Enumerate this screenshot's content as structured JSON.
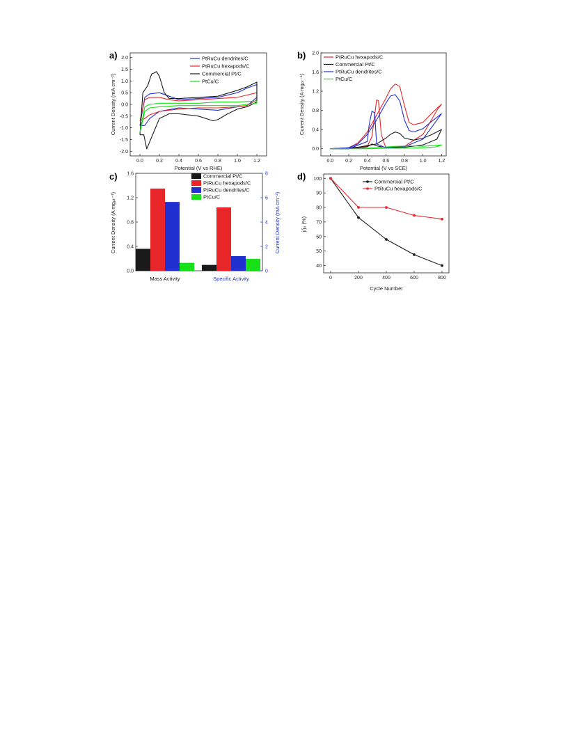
{
  "colors": {
    "black": "#1a1a1a",
    "red": "#e8262a",
    "blue": "#2030d0",
    "green": "#18e018",
    "gray": "#555555"
  },
  "chart_data": [
    {
      "panel": "a)",
      "type": "line",
      "xlabel": "Potential (V vs RHE)",
      "ylabel": "Current Density (mA cm⁻²)",
      "xlim": [
        -0.1,
        1.3
      ],
      "ylim": [
        -2.2,
        2.2
      ],
      "xticks": [
        "0.0",
        "0.2",
        "0.4",
        "0.6",
        "0.8",
        "1.0",
        "1.2"
      ],
      "yticks": [
        "-2.0",
        "-1.5",
        "-1.0",
        "-0.5",
        "0.0",
        "0.5",
        "1.0",
        "1.5",
        "2.0"
      ],
      "legend_position": "top-right",
      "series": [
        {
          "name": "PtRuCu dendrites/C",
          "color": "blue",
          "x": [
            0.0,
            0.05,
            0.1,
            0.2,
            0.3,
            0.4,
            0.6,
            0.8,
            1.0,
            1.1,
            1.2,
            1.2,
            1.1,
            1.0,
            0.8,
            0.6,
            0.4,
            0.2,
            0.1,
            0.05,
            0.0
          ],
          "y": [
            -0.9,
            0.3,
            0.45,
            0.5,
            0.35,
            0.2,
            0.25,
            0.3,
            0.5,
            0.7,
            0.85,
            0.3,
            -0.05,
            -0.1,
            -0.25,
            -0.2,
            -0.15,
            -0.3,
            -0.6,
            -0.9,
            -0.9
          ]
        },
        {
          "name": "PtRuCu hexapods/C",
          "color": "red",
          "x": [
            0.0,
            0.05,
            0.1,
            0.2,
            0.3,
            0.4,
            0.6,
            0.8,
            1.0,
            1.1,
            1.2,
            1.2,
            1.1,
            1.0,
            0.8,
            0.6,
            0.4,
            0.2,
            0.1,
            0.05,
            0.0
          ],
          "y": [
            -0.7,
            0.2,
            0.3,
            0.3,
            0.2,
            0.15,
            0.2,
            0.25,
            0.3,
            0.4,
            0.5,
            0.2,
            -0.05,
            -0.1,
            -0.15,
            -0.15,
            -0.2,
            -0.3,
            -0.45,
            -0.6,
            -0.7
          ]
        },
        {
          "name": "Commercial Pt/C",
          "color": "black",
          "x": [
            0.0,
            0.03,
            0.08,
            0.12,
            0.15,
            0.17,
            0.2,
            0.25,
            0.3,
            0.4,
            0.6,
            0.8,
            1.0,
            1.1,
            1.2,
            1.2,
            1.1,
            1.0,
            0.9,
            0.8,
            0.75,
            0.6,
            0.4,
            0.3,
            0.2,
            0.15,
            0.1,
            0.07,
            0.04,
            0.0
          ],
          "y": [
            -1.3,
            0.5,
            0.8,
            1.3,
            1.35,
            1.4,
            1.2,
            0.5,
            0.25,
            0.25,
            0.3,
            0.35,
            0.6,
            0.75,
            0.95,
            0.1,
            -0.1,
            -0.2,
            -0.4,
            -0.65,
            -0.7,
            -0.5,
            -0.4,
            -0.4,
            -0.6,
            -1.1,
            -1.6,
            -1.9,
            -1.3,
            -1.3
          ]
        },
        {
          "name": "PtCu/C",
          "color": "green",
          "x": [
            0.0,
            0.05,
            0.1,
            0.2,
            0.4,
            0.6,
            0.8,
            1.0,
            1.2,
            1.2,
            1.0,
            0.8,
            0.6,
            0.4,
            0.2,
            0.1,
            0.05,
            0.0
          ],
          "y": [
            -1.2,
            -0.1,
            0.0,
            0.05,
            0.05,
            0.05,
            0.1,
            0.1,
            0.15,
            0.05,
            -0.05,
            -0.05,
            -0.05,
            -0.05,
            -0.1,
            -0.15,
            -0.3,
            -1.2
          ]
        }
      ]
    },
    {
      "panel": "b)",
      "type": "line",
      "xlabel": "Potential (V vs SCE)",
      "ylabel": "Current Density (A mgₚₜ⁻¹)",
      "xlim": [
        -0.1,
        1.25
      ],
      "ylim": [
        -0.15,
        2.0
      ],
      "xticks": [
        "0.0",
        "0.2",
        "0.4",
        "0.6",
        "0.8",
        "1.0",
        "1.2"
      ],
      "yticks": [
        "0.0",
        "0.4",
        "0.8",
        "1.2",
        "1.6",
        "2.0"
      ],
      "legend_position": "top-left",
      "series": [
        {
          "name": "PtRuCu hexapods/C",
          "color": "red",
          "x": [
            0.0,
            0.2,
            0.3,
            0.4,
            0.5,
            0.6,
            0.65,
            0.7,
            0.75,
            0.8,
            0.85,
            0.9,
            1.0,
            1.1,
            1.2,
            1.15,
            1.0,
            0.8,
            0.6,
            0.55,
            0.52,
            0.5,
            0.48,
            0.45,
            0.4,
            0.2,
            0.0
          ],
          "y": [
            0.0,
            0.02,
            0.12,
            0.35,
            0.7,
            1.05,
            1.25,
            1.35,
            1.3,
            0.9,
            0.55,
            0.5,
            0.55,
            0.75,
            0.93,
            0.8,
            0.3,
            0.05,
            0.02,
            0.3,
            1.0,
            1.02,
            0.7,
            0.25,
            0.05,
            0.0,
            0.0
          ]
        },
        {
          "name": "Commercial Pt/C",
          "color": "black",
          "x": [
            0.0,
            0.3,
            0.5,
            0.6,
            0.65,
            0.7,
            0.75,
            0.8,
            0.9,
            1.0,
            1.1,
            1.2,
            1.15,
            1.0,
            0.8,
            0.6,
            0.5,
            0.45,
            0.4,
            0.2,
            0.0
          ],
          "y": [
            0.0,
            0.03,
            0.1,
            0.22,
            0.3,
            0.35,
            0.32,
            0.22,
            0.18,
            0.22,
            0.3,
            0.4,
            0.2,
            0.08,
            0.03,
            0.02,
            0.06,
            0.1,
            0.04,
            0.0,
            0.0
          ]
        },
        {
          "name": "PtRuCu dendrites/C",
          "color": "blue",
          "x": [
            0.0,
            0.2,
            0.3,
            0.4,
            0.5,
            0.6,
            0.65,
            0.7,
            0.75,
            0.8,
            0.85,
            0.9,
            1.0,
            1.1,
            1.2,
            1.15,
            1.0,
            0.8,
            0.6,
            0.5,
            0.48,
            0.45,
            0.42,
            0.4,
            0.2,
            0.0
          ],
          "y": [
            0.0,
            0.02,
            0.1,
            0.3,
            0.6,
            0.95,
            1.1,
            1.13,
            1.0,
            0.6,
            0.38,
            0.35,
            0.42,
            0.58,
            0.73,
            0.6,
            0.2,
            0.04,
            0.02,
            0.1,
            0.75,
            0.78,
            0.5,
            0.15,
            0.0,
            0.0
          ]
        },
        {
          "name": "PtCu/C",
          "color": "green",
          "x": [
            0.0,
            0.3,
            0.5,
            0.7,
            0.9,
            1.0,
            1.2,
            1.15,
            1.0,
            0.8,
            0.6,
            0.4,
            0.2,
            0.0
          ],
          "y": [
            0.0,
            0.0,
            0.02,
            0.05,
            0.06,
            0.05,
            0.08,
            0.04,
            0.02,
            0.01,
            0.01,
            0.0,
            0.0,
            0.0
          ]
        }
      ]
    },
    {
      "panel": "c)",
      "type": "bar",
      "categories": [
        "Mass Activity",
        "Specific Activity"
      ],
      "category_colors": [
        "black",
        "blue"
      ],
      "ylabel": "Current Density (A mgₚₜ⁻¹)",
      "ylabel_right": "Current Density (mA cm⁻²)",
      "ylim": [
        0,
        1.6
      ],
      "ylim_right": [
        0,
        8
      ],
      "yticks": [
        "0.0",
        "0.4",
        "0.8",
        "1.2",
        "1.6"
      ],
      "yticks_right": [
        "0",
        "2",
        "4",
        "6",
        "8"
      ],
      "legend_position": "top-right",
      "series": [
        {
          "name": "Commercial Pt/C",
          "color": "black",
          "values": [
            0.36,
            0.48
          ],
          "axis": [
            "left",
            "right"
          ]
        },
        {
          "name": "PtRuCu hexapods/C",
          "color": "red",
          "values": [
            1.35,
            5.2
          ],
          "axis": [
            "left",
            "right"
          ]
        },
        {
          "name": "PtRuCu dendrites/C",
          "color": "blue",
          "values": [
            1.13,
            1.2
          ],
          "axis": [
            "left",
            "right"
          ]
        },
        {
          "name": "PtCu/C",
          "color": "green",
          "values": [
            0.13,
            0.98
          ],
          "axis": [
            "left",
            "right"
          ]
        }
      ]
    },
    {
      "panel": "d)",
      "type": "line",
      "xlabel": "Cycle Number",
      "ylabel": "j/j₀ (%)",
      "xlim": [
        -50,
        850
      ],
      "ylim": [
        35,
        103
      ],
      "xticks": [
        "0",
        "200",
        "400",
        "600",
        "800"
      ],
      "yticks": [
        "40",
        "50",
        "60",
        "70",
        "80",
        "90",
        "100"
      ],
      "legend_position": "top-right",
      "series": [
        {
          "name": "Commercial Pt/C",
          "color": "black",
          "x": [
            0,
            200,
            400,
            600,
            800
          ],
          "y": [
            100,
            73,
            58,
            47.5,
            40
          ]
        },
        {
          "name": "PtRuCu hexapods/C",
          "color": "red",
          "x": [
            0,
            200,
            400,
            600,
            800
          ],
          "y": [
            100,
            80,
            80,
            74.5,
            72
          ]
        }
      ]
    }
  ]
}
